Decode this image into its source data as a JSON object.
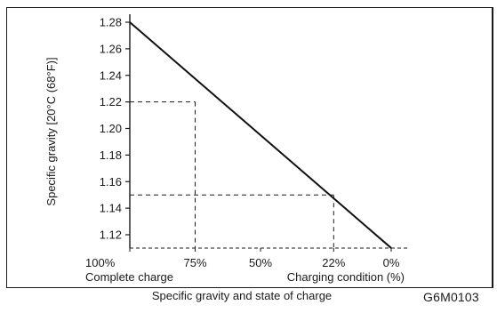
{
  "chart_data": {
    "type": "line",
    "title": "Specific gravity and state of charge",
    "ylabel": "Specific gravity [20°C (68°F)]",
    "xlabel": "Charging condition (%)",
    "x_reversed": true,
    "xlim": [
      0,
      100
    ],
    "ylim": [
      1.11,
      1.285
    ],
    "yticks": [
      "1.12",
      "1.14",
      "1.16",
      "1.18",
      "1.20",
      "1.22",
      "1.24",
      "1.26",
      "1.28"
    ],
    "xticks": [
      {
        "value": 100,
        "label": "100%"
      },
      {
        "value": 75,
        "label": "75%"
      },
      {
        "value": 50,
        "label": "50%"
      },
      {
        "value": 22,
        "label": "22%"
      },
      {
        "value": 0,
        "label": "0%"
      }
    ],
    "x_annotation": "Complete charge",
    "series": [
      {
        "x": [
          100,
          0
        ],
        "y": [
          1.28,
          1.11
        ]
      }
    ],
    "guides": [
      {
        "x": 75,
        "y": 1.22
      },
      {
        "x": 22,
        "y": 1.15
      }
    ],
    "grid": false
  },
  "figure_code": "G6M0103"
}
